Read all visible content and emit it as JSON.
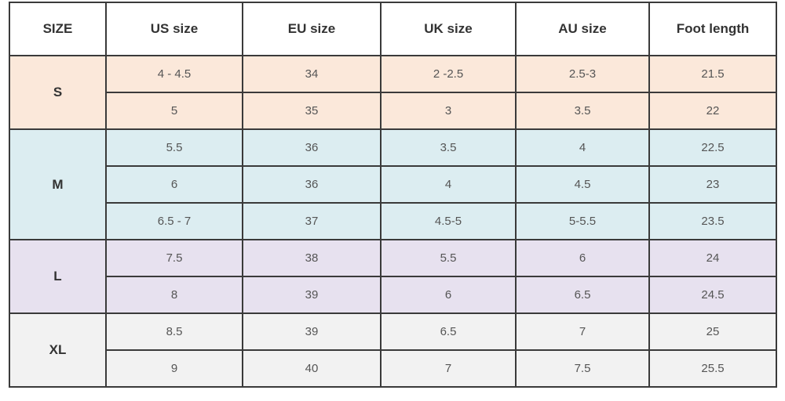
{
  "table": {
    "header": [
      "SIZE",
      "US size",
      "EU size",
      "UK size",
      "AU size",
      "Foot length"
    ],
    "groups": [
      {
        "size": "S",
        "rows": [
          [
            "4 - 4.5",
            "34",
            "2 -2.5",
            "2.5-3",
            "21.5"
          ],
          [
            "5",
            "35",
            "3",
            "3.5",
            "22"
          ]
        ]
      },
      {
        "size": "M",
        "rows": [
          [
            "5.5",
            "36",
            "3.5",
            "4",
            "22.5"
          ],
          [
            "6",
            "36",
            "4",
            "4.5",
            "23"
          ],
          [
            "6.5 - 7",
            "37",
            "4.5-5",
            "5-5.5",
            "23.5"
          ]
        ]
      },
      {
        "size": "L",
        "rows": [
          [
            "7.5",
            "38",
            "5.5",
            "6",
            "24"
          ],
          [
            "8",
            "39",
            "6",
            "6.5",
            "24.5"
          ]
        ]
      },
      {
        "size": "XL",
        "rows": [
          [
            "8.5",
            "39",
            "6.5",
            "7",
            "25"
          ],
          [
            "9",
            "40",
            "7",
            "7.5",
            "25.5"
          ]
        ]
      }
    ]
  }
}
